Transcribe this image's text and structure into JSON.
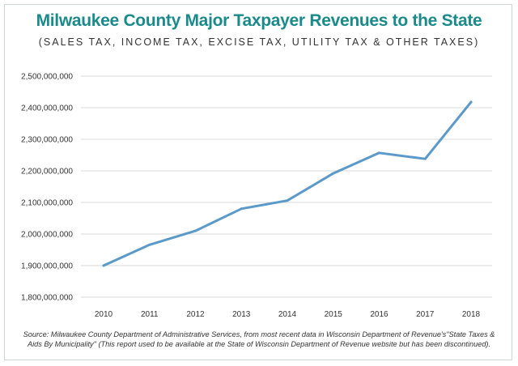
{
  "chart_data": {
    "type": "line",
    "title": "Milwaukee County Major Taxpayer Revenues to the State",
    "subtitle": "(SALES TAX, INCOME TAX, EXCISE TAX, UTILITY TAX & OTHER TAXES)",
    "xlabel": "",
    "ylabel": "",
    "categories": [
      "2010",
      "2011",
      "2012",
      "2013",
      "2014",
      "2015",
      "2016",
      "2017",
      "2018"
    ],
    "series": [
      {
        "values": [
          1900000000,
          1966000000,
          2010000000,
          2080000000,
          2106000000,
          2192000000,
          2257000000,
          2238000000,
          2418000000
        ]
      }
    ],
    "ylim": [
      1800000000,
      2500000000
    ],
    "yticks": [
      1800000000,
      1900000000,
      2000000000,
      2100000000,
      2200000000,
      2300000000,
      2400000000,
      2500000000
    ],
    "ytick_labels": [
      "1,800,000,000",
      "1,900,000,000",
      "2,000,000,000",
      "2,100,000,000",
      "2,200,000,000",
      "2,300,000,000",
      "2,400,000,000",
      "2,500,000,000"
    ],
    "grid": true,
    "line_color": "#5b9ac8",
    "source": "Source: Milwaukee County Department of Administrative Services, from most recent data in Wisconsin Department of Revenue's\"State Taxes & Aids By Municipality\" (This report used to be available at the State of Wisconsin Department of Revenue website but has been discontinued)."
  },
  "colors": {
    "title": "#1b8a8a",
    "grid": "#d9d9d9",
    "axis_text": "#333333"
  }
}
